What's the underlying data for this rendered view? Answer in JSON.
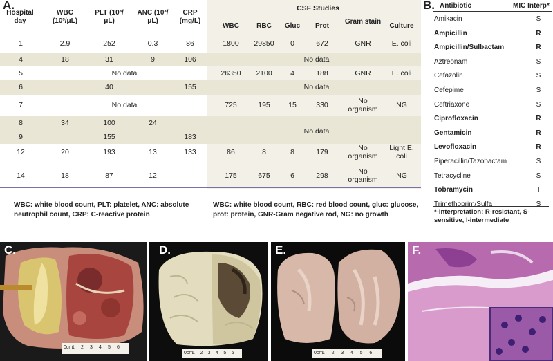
{
  "panel_a": {
    "label": "A.",
    "headers": {
      "hospital_day": "Hospital day",
      "wbc": "WBC (10³/μL)",
      "plt": "PLT (10³/μL)",
      "anc": "ANC (10³/μL)",
      "crp": "CRP (mg/L)",
      "csf_title": "CSF Studies",
      "csf_wbc": "WBC",
      "csf_rbc": "RBC",
      "csf_gluc": "Gluc",
      "csf_prot": "Prot",
      "csf_gram": "Gram stain",
      "csf_culture": "Culture"
    },
    "rows": [
      {
        "day": "1",
        "wbc": "2.9",
        "plt": "252",
        "anc": "0.3",
        "crp": "86",
        "cwbc": "1800",
        "crbc": "29850",
        "gluc": "0",
        "prot": "672",
        "gram": "GNR",
        "culture": "E. coli"
      },
      {
        "day": "4",
        "wbc": "18",
        "plt": "31",
        "anc": "9",
        "crp": "106",
        "csf_nodata": "No data"
      },
      {
        "day": "5",
        "blood_nodata": "No data",
        "cwbc": "26350",
        "crbc": "2100",
        "gluc": "4",
        "prot": "188",
        "gram": "GNR",
        "culture": "E. coli"
      },
      {
        "day": "6",
        "plt": "40",
        "crp": "155",
        "csf_nodata": "No data"
      },
      {
        "day": "7",
        "blood_nodata": "No data",
        "cwbc": "725",
        "crbc": "195",
        "gluc": "15",
        "prot": "330",
        "gram": "No organism",
        "culture": "NG"
      },
      {
        "day": "8",
        "wbc": "34",
        "plt": "100",
        "anc": "24",
        "csf_nodata": "No data"
      },
      {
        "day": "9",
        "plt": "155",
        "crp": "183"
      },
      {
        "day": "12",
        "wbc": "20",
        "plt": "193",
        "anc": "13",
        "crp": "133",
        "cwbc": "86",
        "crbc": "8",
        "gluc": "8",
        "prot": "179",
        "gram": "No organism",
        "culture": "Light E. coli"
      },
      {
        "day": "14",
        "wbc": "18",
        "plt": "87",
        "anc": "12",
        "cwbc": "175",
        "crbc": "675",
        "gluc": "6",
        "prot": "298",
        "gram": "No organism",
        "culture": "NG"
      }
    ],
    "footnote_left": "WBC: white blood count, PLT: platelet, ANC: absolute neutrophil count, CRP: C-reactive protein",
    "footnote_right": "WBC: white blood count, RBC: red blood count, gluc: glucose, prot: protein, GNR-Gram negative rod, NG: no growth"
  },
  "panel_b": {
    "label": "B.",
    "col_antibiotic": "Antibiotic",
    "col_mic": "MIC Interp*",
    "items": [
      {
        "name": "Amikacin",
        "mic": "S",
        "bold": false
      },
      {
        "name": "Ampicillin",
        "mic": "R",
        "bold": true
      },
      {
        "name": "Ampicillin/Sulbactam",
        "mic": "R",
        "bold": true
      },
      {
        "name": "Aztreonam",
        "mic": "S",
        "bold": false
      },
      {
        "name": "Cefazolin",
        "mic": "S",
        "bold": false
      },
      {
        "name": "Cefepime",
        "mic": "S",
        "bold": false
      },
      {
        "name": "Ceftriaxone",
        "mic": "S",
        "bold": false
      },
      {
        "name": "Ciprofloxacin",
        "mic": "R",
        "bold": true
      },
      {
        "name": "Gentamicin",
        "mic": "R",
        "bold": true
      },
      {
        "name": "Levofloxacin",
        "mic": "R",
        "bold": true
      },
      {
        "name": "Piperacillin/Tazobactam",
        "mic": "S",
        "bold": false
      },
      {
        "name": "Tetracycline",
        "mic": "S",
        "bold": false
      },
      {
        "name": "Tobramycin",
        "mic": "I",
        "bold": true
      },
      {
        "name": "Trimethoprim/Sulfa",
        "mic": "S",
        "bold": false
      }
    ],
    "footnote": "*-Interpretation: R-resistant, S-sensitive, I-intermediate"
  },
  "images": {
    "c_label": "C.",
    "d_label": "D.",
    "e_label": "E.",
    "f_label": "F.",
    "ruler_unit": "0cm",
    "ruler_ticks": [
      "1",
      "2",
      "3",
      "4",
      "5",
      "6"
    ]
  },
  "colors": {
    "shade": "#e9e6d6",
    "rule": "#7b6fa8"
  }
}
